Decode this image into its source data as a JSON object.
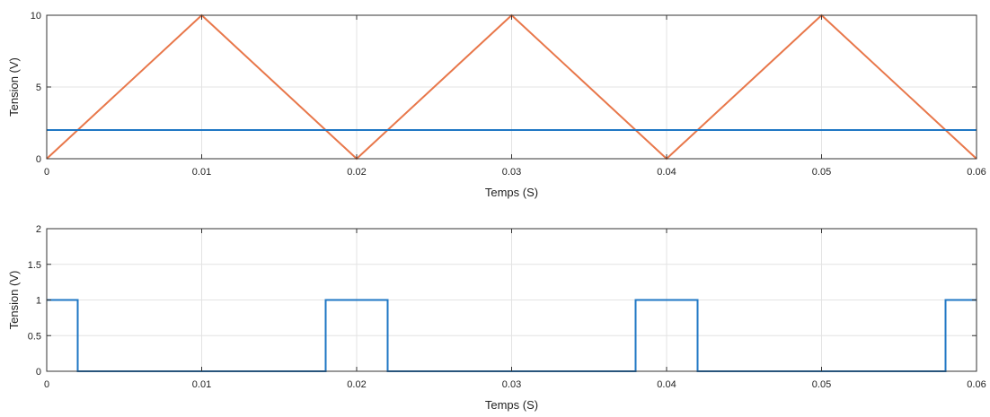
{
  "chart_data": [
    {
      "type": "line",
      "title": "",
      "xlabel": "Temps (S)",
      "ylabel": "Tension (V)",
      "xlim": [
        0,
        0.06
      ],
      "ylim": [
        0,
        10
      ],
      "xticks": [
        0,
        0.01,
        0.02,
        0.03,
        0.04,
        0.05,
        0.06
      ],
      "xtick_labels": [
        "0",
        "0.01",
        "0.02",
        "0.03",
        "0.04",
        "0.05",
        "0.06"
      ],
      "yticks": [
        0,
        5,
        10
      ],
      "ytick_labels": [
        "0",
        "5",
        "10"
      ],
      "grid": true,
      "series": [
        {
          "color": "#e8774a",
          "x": [
            0,
            0.01,
            0.02,
            0.03,
            0.04,
            0.05,
            0.06
          ],
          "y": [
            0,
            10,
            0,
            10,
            0,
            10,
            0
          ]
        },
        {
          "color": "#1f77c4",
          "x": [
            0,
            0.06
          ],
          "y": [
            2,
            2
          ]
        }
      ]
    },
    {
      "type": "line",
      "title": "",
      "xlabel": "Temps (S)",
      "ylabel": "Tension (V)",
      "xlim": [
        0,
        0.06
      ],
      "ylim": [
        0,
        2
      ],
      "xticks": [
        0,
        0.01,
        0.02,
        0.03,
        0.04,
        0.05,
        0.06
      ],
      "xtick_labels": [
        "0",
        "0.01",
        "0.02",
        "0.03",
        "0.04",
        "0.05",
        "0.06"
      ],
      "yticks": [
        0,
        0.5,
        1,
        1.5,
        2
      ],
      "ytick_labels": [
        "0",
        "0.5",
        "1",
        "1.5",
        "2"
      ],
      "grid": true,
      "series": [
        {
          "color": "#1f77c4",
          "x": [
            0,
            0.002,
            0.002,
            0.018,
            0.018,
            0.022,
            0.022,
            0.038,
            0.038,
            0.042,
            0.042,
            0.058,
            0.058,
            0.06
          ],
          "y": [
            1,
            1,
            0,
            0,
            1,
            1,
            0,
            0,
            1,
            1,
            0,
            0,
            1,
            1
          ]
        }
      ]
    }
  ]
}
